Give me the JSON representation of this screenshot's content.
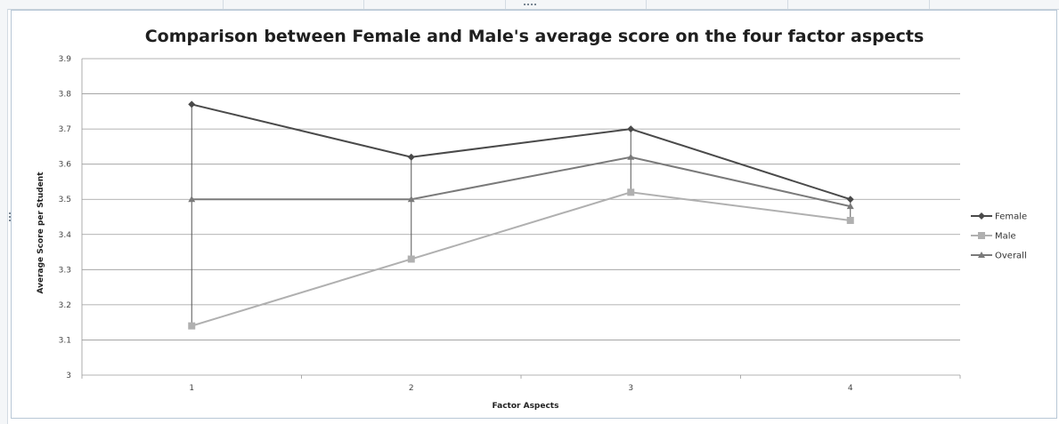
{
  "chart_data": {
    "type": "line",
    "title": "Comparison between Female and Male's average score on the four factor aspects",
    "xlabel": "Factor Aspects",
    "ylabel": "Average Score per Student",
    "categories": [
      "1",
      "2",
      "3",
      "4"
    ],
    "ylim": [
      3,
      3.9
    ],
    "yticks": [
      "3",
      "3.1",
      "3.2",
      "3.3",
      "3.4",
      "3.5",
      "3.6",
      "3.7",
      "3.8",
      "3.9"
    ],
    "grid": true,
    "legend_position": "right",
    "series": [
      {
        "name": "Female",
        "values": [
          3.77,
          3.62,
          3.7,
          3.5
        ],
        "color": "#4a4a4a",
        "marker": "diamond"
      },
      {
        "name": "Male",
        "values": [
          3.14,
          3.33,
          3.52,
          3.44
        ],
        "color": "#b0b0b0",
        "marker": "square"
      },
      {
        "name": "Overall",
        "values": [
          3.5,
          3.5,
          3.62,
          3.48
        ],
        "color": "#7a7a7a",
        "marker": "triangle"
      }
    ],
    "drop_lines": true
  }
}
